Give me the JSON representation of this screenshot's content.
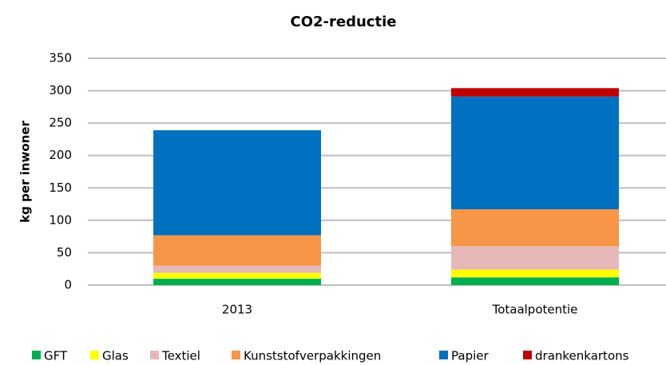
{
  "chart_data": {
    "type": "stacked_bar",
    "title": "CO2-reductie",
    "y_label": "kg per inwoner",
    "categories": [
      "2013",
      "Totaalpotentie"
    ],
    "series": [
      {
        "name": "GFT",
        "color": "#00b050",
        "values": [
          10,
          12
        ]
      },
      {
        "name": "Glas",
        "color": "#ffff00",
        "values": [
          9,
          12
        ]
      },
      {
        "name": "Textiel",
        "color": "#e6b9b8",
        "values": [
          11,
          36
        ]
      },
      {
        "name": "Kunststofverpakkingen",
        "color": "#f79646",
        "values": [
          47,
          57
        ]
      },
      {
        "name": "Papier",
        "color": "#0070c0",
        "values": [
          162,
          174
        ]
      },
      {
        "name": "drankenkartons",
        "color": "#c00000",
        "values": [
          0,
          13
        ]
      }
    ],
    "ylim": [
      0,
      350
    ],
    "yticks": [
      0,
      50,
      100,
      150,
      200,
      250,
      300,
      350
    ],
    "grid": true,
    "legend": "bottom"
  }
}
